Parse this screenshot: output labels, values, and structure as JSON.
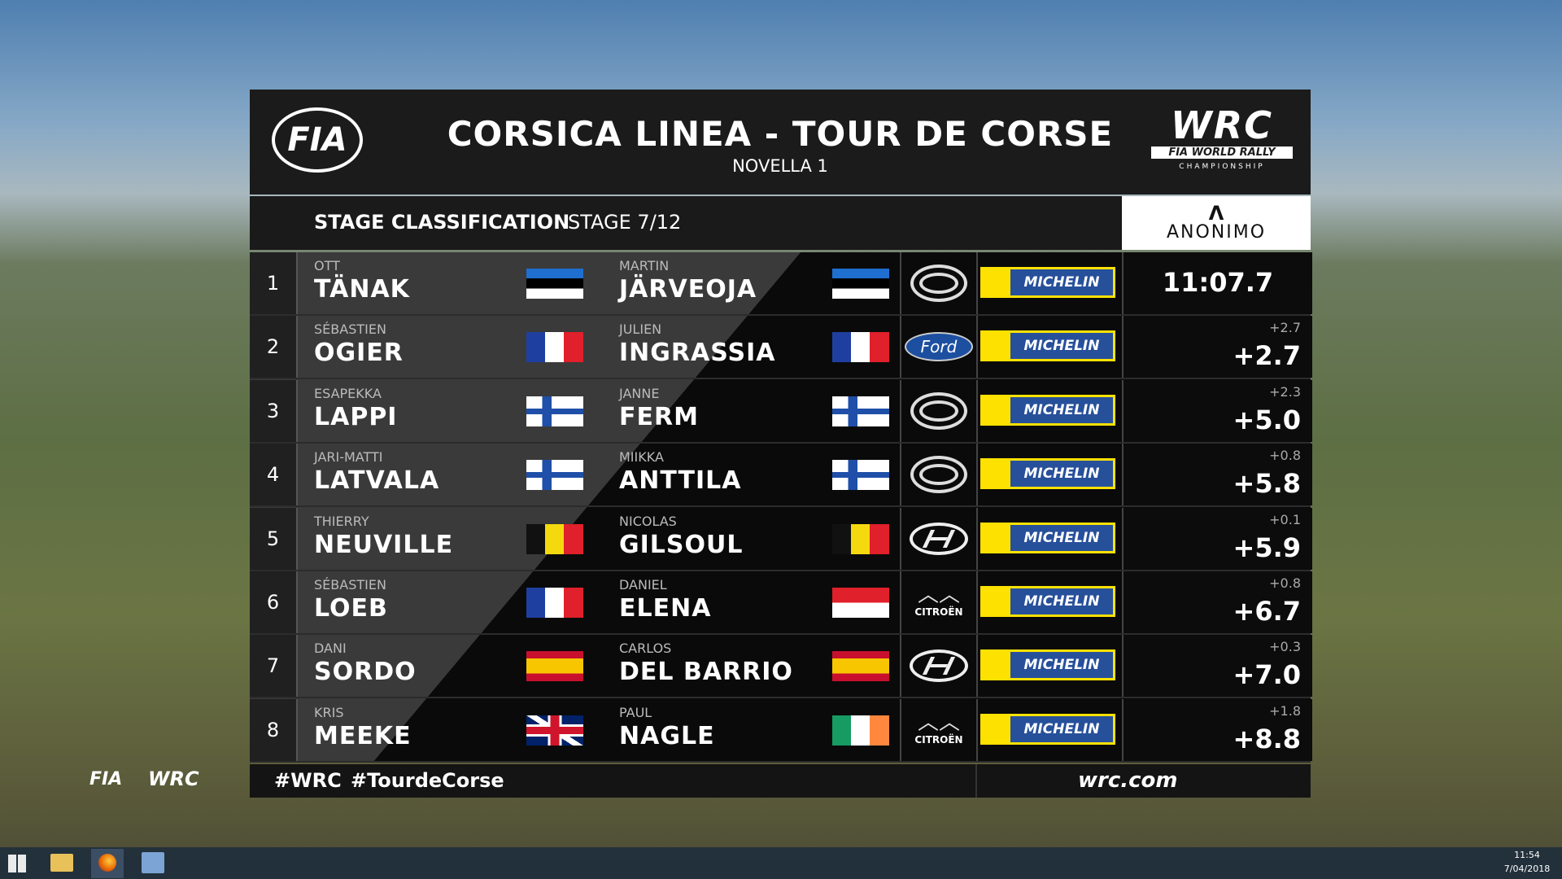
{
  "header": {
    "left_logo": "FIA",
    "title": "CORSICA LINEA - TOUR DE CORSE",
    "subtitle": "NOVELLA 1",
    "right_logo": "WRC",
    "right_logo_tagline": "FIA WORLD RALLY",
    "right_logo_subtagline": "CHAMPIONSHIP"
  },
  "stage_bar": {
    "label": "STAGE CLASSIFICATION",
    "stage": "STAGE 7/12",
    "sponsor": "ANONIMO"
  },
  "rows": [
    {
      "position": "1",
      "driver_first": "OTT",
      "driver_last": "TÄNAK",
      "codriver_first": "MARTIN",
      "codriver_last": "JÄRVEOJA",
      "tyre": "MICHELIN",
      "time": "11:07.7"
    },
    {
      "position": "2",
      "driver_first": "SÉBASTIEN",
      "driver_last": "OGIER",
      "codriver_first": "JULIEN",
      "codriver_last": "INGRASSIA",
      "brand": "Ford",
      "tyre": "MICHELIN",
      "gap_prev": "+2.7",
      "gap": "+2.7"
    },
    {
      "position": "3",
      "driver_first": "ESAPEKKA",
      "driver_last": "LAPPI",
      "codriver_first": "JANNE",
      "codriver_last": "FERM",
      "tyre": "MICHELIN",
      "gap_prev": "+2.3",
      "gap": "+5.0"
    },
    {
      "position": "4",
      "driver_first": "JARI-MATTI",
      "driver_last": "LATVALA",
      "codriver_first": "MIIKKA",
      "codriver_last": "ANTTILA",
      "tyre": "MICHELIN",
      "gap_prev": "+0.8",
      "gap": "+5.8"
    },
    {
      "position": "5",
      "driver_first": "THIERRY",
      "driver_last": "NEUVILLE",
      "codriver_first": "NICOLAS",
      "codriver_last": "GILSOUL",
      "tyre": "MICHELIN",
      "gap_prev": "+0.1",
      "gap": "+5.9"
    },
    {
      "position": "6",
      "driver_first": "SÉBASTIEN",
      "driver_last": "LOEB",
      "codriver_first": "DANIEL",
      "codriver_last": "ELENA",
      "brand": "CITROËN",
      "tyre": "MICHELIN",
      "gap_prev": "+0.8",
      "gap": "+6.7"
    },
    {
      "position": "7",
      "driver_first": "DANI",
      "driver_last": "SORDO",
      "codriver_first": "CARLOS",
      "codriver_last": "DEL BARRIO",
      "tyre": "MICHELIN",
      "gap_prev": "+0.3",
      "gap": "+7.0"
    },
    {
      "position": "8",
      "driver_first": "KRIS",
      "driver_last": "MEEKE",
      "codriver_first": "PAUL",
      "codriver_last": "NAGLE",
      "brand": "CITROËN",
      "tyre": "MICHELIN",
      "gap_prev": "+1.8",
      "gap": "+8.8"
    }
  ],
  "footer": {
    "hashtags": [
      "#WRC",
      "#TourdeCorse"
    ],
    "site": "wrc.com"
  },
  "side_logos": [
    "FIA",
    "WRC"
  ],
  "taskbar": {
    "time": "11:54",
    "date": "7/04/2018"
  }
}
